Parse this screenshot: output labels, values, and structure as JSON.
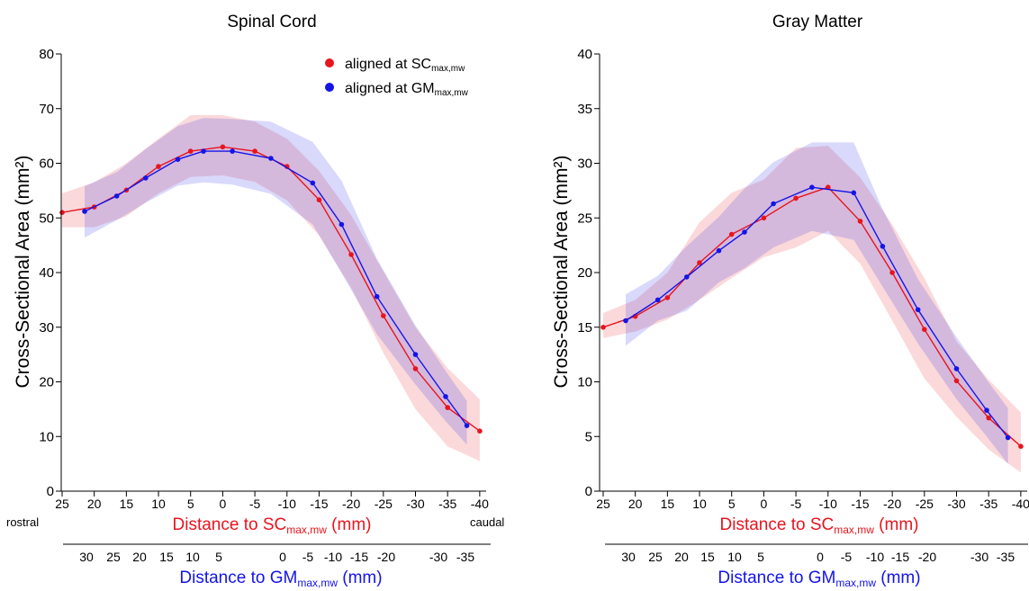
{
  "chart_data": [
    {
      "type": "line",
      "title": "Spinal Cord",
      "ylabel": "Cross-Sectional Area (mm²)",
      "ylim": [
        0,
        80
      ],
      "yticks": [
        0,
        10,
        20,
        30,
        40,
        50,
        60,
        70,
        80
      ],
      "xlabel_top": {
        "main": "Distance to SC",
        "sub": "max,mw",
        "unit": " (mm)"
      },
      "xlabel_bottom": {
        "main": "Distance to GM",
        "sub": "max,mw",
        "unit": " (mm)"
      },
      "xlim_top": [
        25,
        -41
      ],
      "xticks_top": [
        25,
        20,
        15,
        10,
        5,
        0,
        -5,
        -10,
        -15,
        -20,
        -25,
        -30,
        -35,
        -40
      ],
      "xticks_bottom": [
        30,
        25,
        20,
        15,
        10,
        5,
        0,
        -5,
        -10,
        -15,
        -20,
        -30,
        -35
      ],
      "end_labels": {
        "left": "rostral",
        "right": "caudal"
      },
      "legend": {
        "position": "top-right",
        "entries": [
          {
            "prefix": "aligned at SC",
            "sub": "max,mw",
            "color": "#e8141e"
          },
          {
            "prefix": "aligned at GM",
            "sub": "max,mw",
            "color": "#1414e8"
          }
        ]
      },
      "series": [
        {
          "name": "aligned at SCmax,mw",
          "color": "#e8141e",
          "x": [
            25,
            20,
            15,
            10,
            5,
            0,
            -5,
            -10,
            -15,
            -20,
            -25,
            -30,
            -35,
            -40
          ],
          "y": [
            51,
            52,
            55.1,
            59.4,
            62.2,
            63,
            62.2,
            59.4,
            53.3,
            43.3,
            32.1,
            22.4,
            15.3,
            11
          ],
          "band_upper": [
            54.5,
            56.5,
            60,
            64.5,
            68.8,
            68.8,
            67.6,
            64.5,
            58.6,
            50.5,
            40.2,
            30,
            22.5,
            16.8
          ],
          "band_lower": [
            48.3,
            48.3,
            50.3,
            54.5,
            57.5,
            57.8,
            56.6,
            53.2,
            46.8,
            37.2,
            25.3,
            15,
            8.2,
            5.5
          ]
        },
        {
          "name": "aligned at GMmax,mw",
          "color": "#1414e8",
          "x": [
            21.5,
            16.5,
            12,
            7,
            3,
            -1.5,
            -7.5,
            -14,
            -18.5,
            -24,
            -30,
            -34.7,
            -38
          ],
          "y": [
            51.2,
            54,
            57.3,
            60.7,
            62.2,
            62.2,
            60.9,
            56.4,
            48.8,
            35.6,
            25,
            17.3,
            12
          ],
          "band_upper": [
            55.8,
            58.4,
            62.6,
            66.8,
            68.3,
            68.1,
            67.6,
            63.9,
            56.8,
            42.5,
            30.3,
            22,
            16.5
          ],
          "band_lower": [
            46.4,
            49.6,
            52.8,
            55.9,
            56.5,
            56.1,
            54.4,
            48.8,
            39.9,
            28.7,
            19.5,
            12.8,
            8.5
          ]
        }
      ]
    },
    {
      "type": "line",
      "title": "Gray Matter",
      "ylabel": "Cross-Sectional Area (mm²)",
      "ylim": [
        0,
        40
      ],
      "yticks": [
        0,
        5,
        10,
        15,
        20,
        25,
        30,
        35,
        40
      ],
      "xlabel_top": {
        "main": "Distance to SC",
        "sub": "max,mw",
        "unit": " (mm)"
      },
      "xlabel_bottom": {
        "main": "Distance to GM",
        "sub": "max,mw",
        "unit": " (mm)"
      },
      "xlim_top": [
        25,
        -41
      ],
      "xticks_top": [
        25,
        20,
        15,
        10,
        5,
        0,
        -5,
        -10,
        -15,
        -20,
        -25,
        -30,
        -35,
        -40
      ],
      "xticks_bottom": [
        30,
        25,
        20,
        15,
        10,
        5,
        0,
        -5,
        -10,
        -15,
        -20,
        -30,
        -35
      ],
      "series": [
        {
          "name": "aligned at SCmax,mw",
          "color": "#e8141e",
          "x": [
            25,
            20,
            15,
            10,
            5,
            0,
            -5,
            -10,
            -15,
            -20,
            -25,
            -30,
            -35,
            -40
          ],
          "y": [
            15,
            16,
            17.7,
            20.9,
            23.5,
            25,
            26.8,
            27.8,
            24.7,
            20,
            14.8,
            10.1,
            6.7,
            4.1
          ],
          "band_upper": [
            16.3,
            17.5,
            20,
            24.6,
            27.3,
            28.5,
            31.4,
            31.6,
            28.7,
            24.4,
            19.5,
            13.7,
            10.2,
            7.2
          ],
          "band_lower": [
            14,
            14.6,
            15.7,
            17.5,
            19.5,
            21.4,
            22.3,
            23.8,
            20.8,
            15.6,
            10.3,
            6.8,
            3.8,
            1.7
          ]
        },
        {
          "name": "aligned at GMmax,mw",
          "color": "#1414e8",
          "x": [
            21.5,
            16.5,
            12,
            7,
            3,
            -1.5,
            -7.5,
            -14,
            -18.5,
            -24,
            -30,
            -34.7,
            -38
          ],
          "y": [
            15.6,
            17.5,
            19.6,
            22,
            23.7,
            26.3,
            27.8,
            27.3,
            22.4,
            16.6,
            11.2,
            7.4,
            4.9
          ],
          "band_upper": [
            18,
            19.7,
            22.4,
            25.1,
            27.7,
            30.1,
            31.9,
            31.9,
            25.8,
            19.4,
            14.1,
            10.2,
            7.6
          ],
          "band_lower": [
            13.3,
            15.6,
            16.5,
            19.1,
            20.4,
            22.3,
            23.8,
            23,
            18.7,
            13.5,
            8.4,
            5,
            2.5
          ]
        }
      ]
    }
  ]
}
